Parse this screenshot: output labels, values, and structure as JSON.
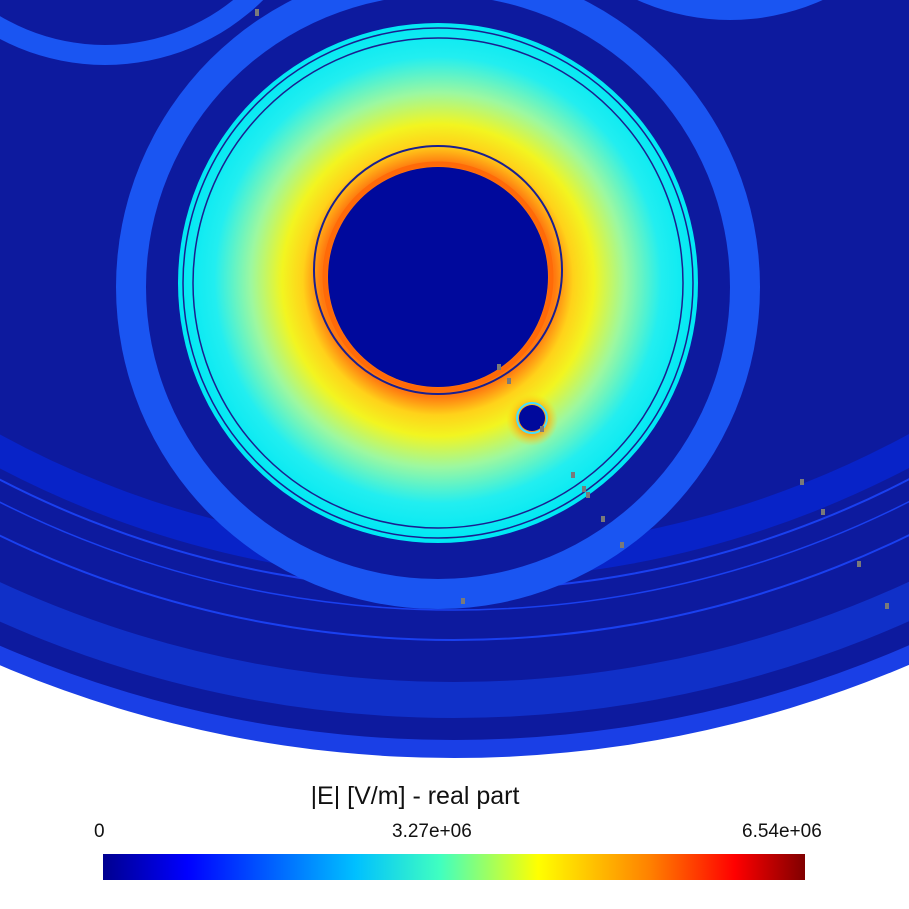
{
  "colorbar": {
    "title": "|E| [V/m] - real part",
    "min_label": "0",
    "mid_label": "3.27e+06",
    "max_label": "6.54e+06",
    "min_value": 0,
    "mid_value": 3270000,
    "max_value": 6540000,
    "colormap": "jet"
  },
  "colors": {
    "background": "#ffffff",
    "outer_region": "#0d1a9e",
    "conductor_core": "#00099c",
    "insulation_inner": "#ff8c10",
    "insulation_mid": "#f4f018",
    "insulation_outer": "#00f0ee",
    "screen_ring": "#1955f2",
    "jacket_ring": "#0820d8",
    "boundary_line": "#1a1f8f",
    "marker": "#7a7a7a"
  },
  "colorbar_stops": [
    "#00008f",
    "#0000ff",
    "#00c0ff",
    "#40ffc0",
    "#ffff00",
    "#ff8000",
    "#ff0000",
    "#800000"
  ]
}
